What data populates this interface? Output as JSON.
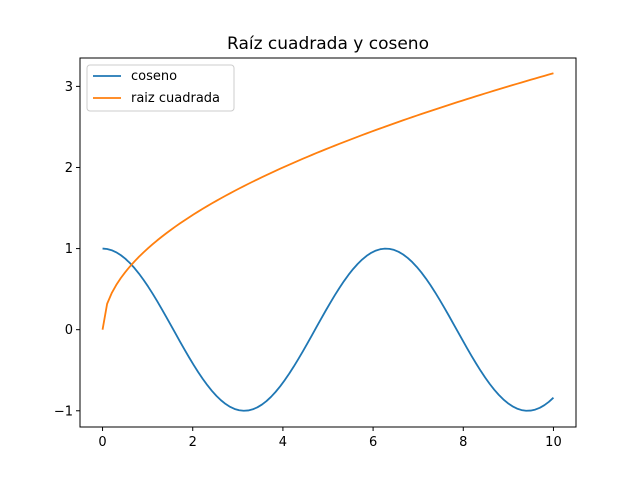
{
  "chart_data": {
    "type": "line",
    "title": "Raíz cuadrada y coseno",
    "xlabel": "",
    "ylabel": "",
    "xlim": [
      -0.5,
      10.5
    ],
    "ylim": [
      -1.2,
      3.35
    ],
    "x_ticks": [
      0,
      2,
      4,
      6,
      8,
      10
    ],
    "y_ticks": [
      -1,
      0,
      1,
      2,
      3
    ],
    "x_tick_labels": [
      "0",
      "2",
      "4",
      "6",
      "8",
      "10"
    ],
    "y_tick_labels": [
      "−1",
      "0",
      "1",
      "2",
      "3"
    ],
    "grid": false,
    "legend_position": "top-left",
    "x_domain": [
      0,
      10
    ],
    "samples": 100,
    "series": [
      {
        "name": "coseno",
        "function": "cos(x)",
        "color": "#1f77b4"
      },
      {
        "name": "raiz cuadrada",
        "function": "sqrt(x)",
        "color": "#ff7f0e"
      }
    ]
  }
}
